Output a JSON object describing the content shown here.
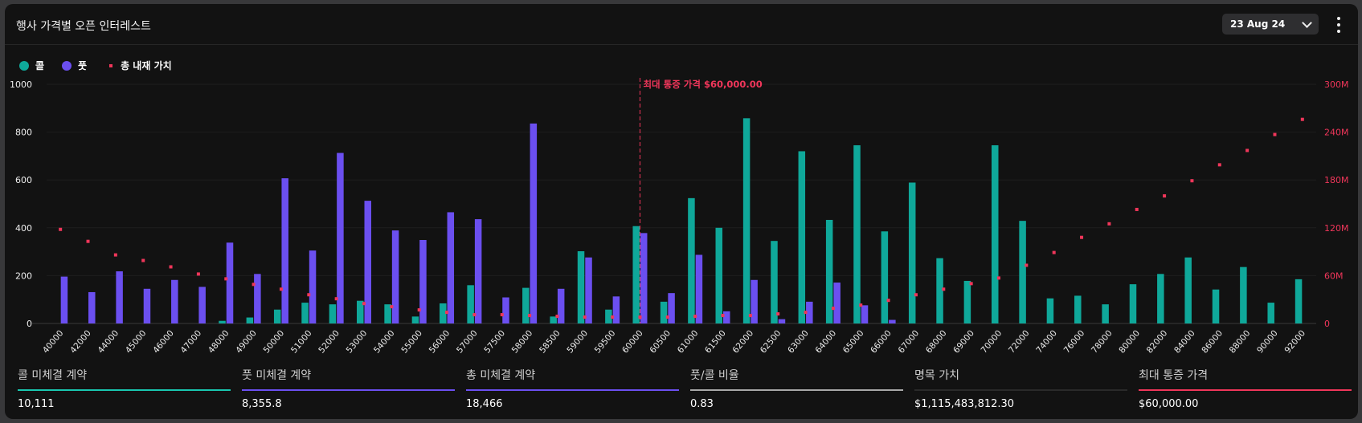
{
  "header": {
    "title": "행사 가격별 오픈 인터레스트",
    "date_selector": "23 Aug 24",
    "menu_icon": "kebab-icon"
  },
  "legend": {
    "call": "콜",
    "put": "풋",
    "total": "총 내재 가치"
  },
  "colors": {
    "call": "#0fa89a",
    "put": "#6b4ff0",
    "total": "#f0365a",
    "max_pain": "#f0365a"
  },
  "max_pain_label": "최대 통증 가격 $60,000.00",
  "chart_data": {
    "type": "bar",
    "categories": [
      "40000",
      "42000",
      "44000",
      "45000",
      "46000",
      "47000",
      "48000",
      "49000",
      "50000",
      "51000",
      "52000",
      "53000",
      "54000",
      "55000",
      "56000",
      "57000",
      "57500",
      "58000",
      "58500",
      "59000",
      "59500",
      "60000",
      "60500",
      "61000",
      "61500",
      "62000",
      "62500",
      "63000",
      "64000",
      "65000",
      "66000",
      "67000",
      "68000",
      "69000",
      "70000",
      "72000",
      "74000",
      "76000",
      "78000",
      "80000",
      "82000",
      "84000",
      "86000",
      "88000",
      "90000",
      "92000"
    ],
    "series": [
      {
        "name": "콜",
        "axis": "left",
        "values": [
          0,
          0,
          0,
          0,
          0,
          0,
          11,
          25,
          58,
          87,
          80,
          95,
          80,
          29,
          84,
          160,
          0,
          149,
          29,
          302,
          58,
          407,
          91,
          524,
          400,
          858,
          345,
          720,
          433,
          745,
          385,
          589,
          273,
          178,
          745,
          429,
          105,
          116,
          80,
          164,
          207,
          276,
          142,
          236,
          87,
          185
        ]
      },
      {
        "name": "풋",
        "axis": "left",
        "values": [
          196,
          131,
          218,
          145,
          182,
          153,
          338,
          207,
          607,
          305,
          713,
          513,
          389,
          349,
          465,
          436,
          109,
          836,
          145,
          276,
          113,
          378,
          127,
          287,
          51,
          182,
          18,
          91,
          171,
          76,
          15,
          0,
          0,
          0,
          0,
          0,
          0,
          0,
          0,
          0,
          0,
          0,
          0,
          0,
          0,
          0
        ]
      },
      {
        "name": "총 내재 가치",
        "axis": "right",
        "type": "scatter",
        "values_millions": [
          118,
          103,
          86,
          79,
          71,
          62,
          56,
          49,
          43,
          36,
          31,
          25,
          21,
          17,
          14,
          11,
          11,
          10,
          9,
          8,
          8,
          8,
          8,
          9,
          10,
          10,
          12,
          14,
          19,
          23,
          29,
          36,
          43,
          50,
          57,
          73,
          89,
          108,
          125,
          143,
          160,
          179,
          199,
          217,
          237,
          256
        ]
      }
    ],
    "y_left": {
      "ticks": [
        "0",
        "200",
        "400",
        "600",
        "800",
        "1000"
      ],
      "range": [
        0,
        1000
      ]
    },
    "y_right": {
      "ticks": [
        "0",
        "60M",
        "120M",
        "180M",
        "240M",
        "300M"
      ],
      "range_millions": [
        0,
        300
      ]
    },
    "max_pain_category": "60000",
    "grid": true,
    "legend_position": "top-left"
  },
  "stats": [
    {
      "label": "콜 미체결 계약",
      "value": "10,111",
      "color": "#19c7b0"
    },
    {
      "label": "풋 미체결 계약",
      "value": "8,355.8",
      "color": "#6b4ff0"
    },
    {
      "label": "총 미체결 계약",
      "value": "18,466",
      "color": "#6b4ff0"
    },
    {
      "label": "풋/콜 비율",
      "value": "0.83",
      "color": "#a8a8a8"
    },
    {
      "label": "명목 가치",
      "value": "$1,115,483,812.30",
      "color": "#2a2a2a"
    },
    {
      "label": "최대 통증 가격",
      "value": "$60,000.00",
      "color": "#f0365a"
    }
  ]
}
